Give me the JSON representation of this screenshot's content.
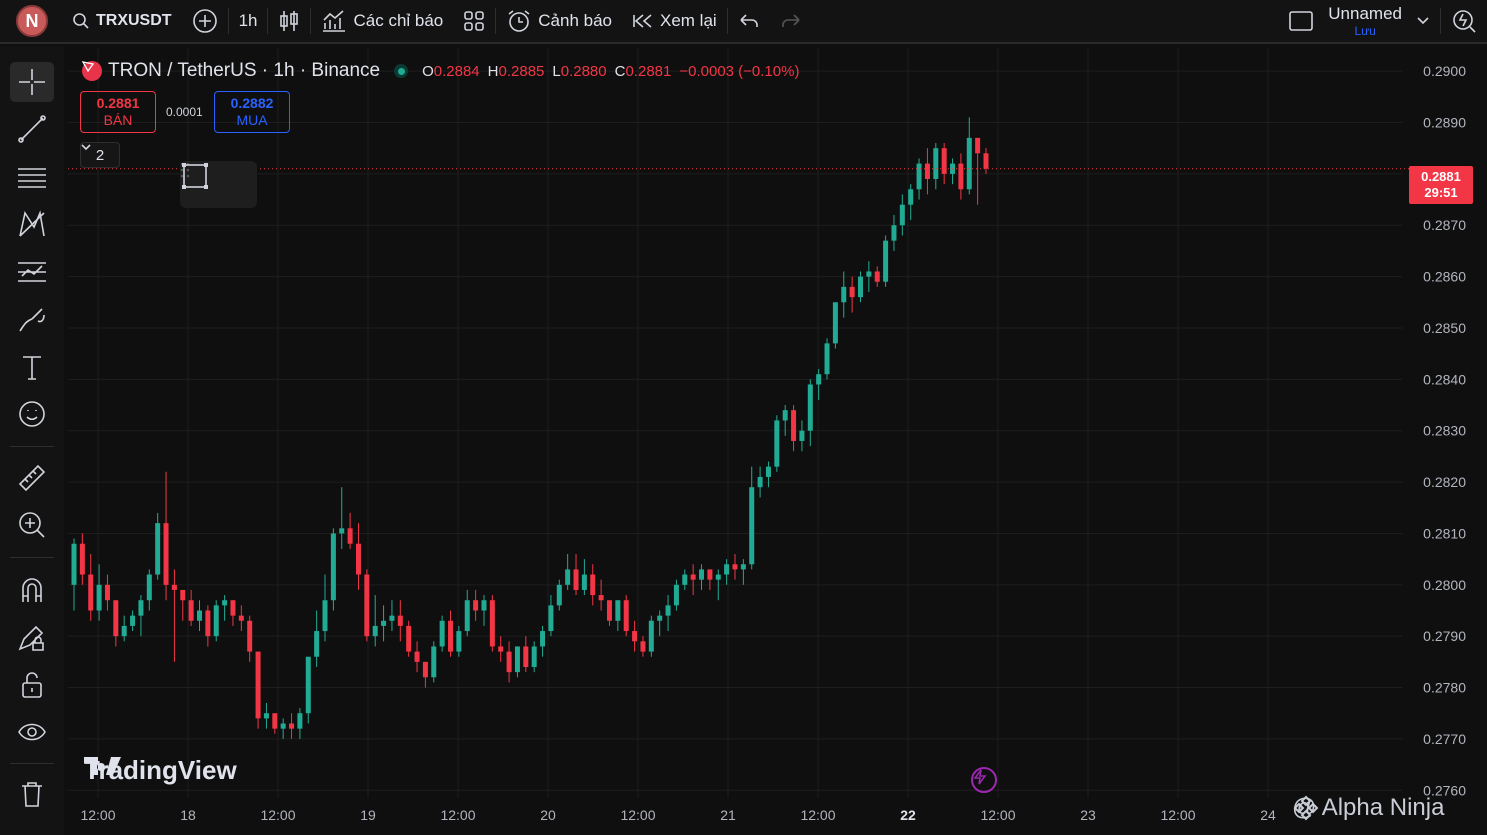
{
  "toolbar": {
    "avatar_letter": "N",
    "symbol": "TRXUSDT",
    "interval": "1h",
    "indicators_label": "Các chỉ báo",
    "alerts_label": "Cảnh báo",
    "replay_label": "Xem lại",
    "layout_name": "Unnamed",
    "layout_save": "Lưu"
  },
  "legend": {
    "title": "TRON / TetherUS · 1h · Binance",
    "o_key": "O",
    "o_val": "0.2884",
    "h_key": "H",
    "h_val": "0.2885",
    "l_key": "L",
    "l_val": "0.2880",
    "c_key": "C",
    "c_val": "0.2881",
    "change": "−0.0003 (−0.10%)"
  },
  "trade": {
    "sell_price": "0.2881",
    "sell_label": "BÁN",
    "spread": "0.0001",
    "buy_price": "0.2882",
    "buy_label": "MUA",
    "collapse_count": "2"
  },
  "price_tag": {
    "price": "0.2881",
    "countdown": "29:51"
  },
  "watermark": "TradingView",
  "credit": "@ Alpha Ninja",
  "colors": {
    "up": "#22ab94",
    "down": "#f23645",
    "grid": "#1e1e1e",
    "accent": "#2962ff"
  },
  "chart_data": {
    "type": "candlestick",
    "y_ticks": [
      "0.2900",
      "0.2890",
      "0.2880",
      "0.2870",
      "0.2860",
      "0.2850",
      "0.2840",
      "0.2830",
      "0.2820",
      "0.2810",
      "0.2800",
      "0.2790",
      "0.2780",
      "0.2770",
      "0.2760"
    ],
    "ylim": [
      0.27585,
      0.29045
    ],
    "x_ticks": [
      "12:00",
      "18",
      "12:00",
      "19",
      "12:00",
      "20",
      "12:00",
      "21",
      "12:00",
      "22",
      "12:00",
      "23",
      "12:00",
      "24"
    ],
    "bold_x_tick_index": 9,
    "current_price": 0.2881,
    "candles": [
      [
        0.28,
        0.2809,
        0.2795,
        0.2808
      ],
      [
        0.2808,
        0.281,
        0.28,
        0.2802
      ],
      [
        0.2802,
        0.2806,
        0.2793,
        0.2795
      ],
      [
        0.2795,
        0.2804,
        0.2793,
        0.28
      ],
      [
        0.28,
        0.2802,
        0.2795,
        0.2797
      ],
      [
        0.2797,
        0.2797,
        0.2788,
        0.279
      ],
      [
        0.279,
        0.2794,
        0.2789,
        0.2792
      ],
      [
        0.2792,
        0.2795,
        0.2791,
        0.2794
      ],
      [
        0.2794,
        0.2798,
        0.279,
        0.2797
      ],
      [
        0.2797,
        0.2803,
        0.2795,
        0.2802
      ],
      [
        0.2802,
        0.2814,
        0.2801,
        0.2812
      ],
      [
        0.2812,
        0.2822,
        0.2797,
        0.28
      ],
      [
        0.28,
        0.2803,
        0.2785,
        0.2799
      ],
      [
        0.2799,
        0.2799,
        0.2793,
        0.2797
      ],
      [
        0.2797,
        0.2799,
        0.2792,
        0.2793
      ],
      [
        0.2793,
        0.2797,
        0.2791,
        0.2795
      ],
      [
        0.2795,
        0.2796,
        0.2788,
        0.279
      ],
      [
        0.279,
        0.2797,
        0.2789,
        0.2796
      ],
      [
        0.2796,
        0.2798,
        0.2793,
        0.2797
      ],
      [
        0.2797,
        0.2797,
        0.2792,
        0.2794
      ],
      [
        0.2794,
        0.2796,
        0.2791,
        0.2793
      ],
      [
        0.2793,
        0.2794,
        0.2785,
        0.2787
      ],
      [
        0.2787,
        0.2787,
        0.2772,
        0.2774
      ],
      [
        0.2774,
        0.2777,
        0.2772,
        0.2775
      ],
      [
        0.2775,
        0.2775,
        0.2771,
        0.2772
      ],
      [
        0.2772,
        0.2774,
        0.277,
        0.2773
      ],
      [
        0.2773,
        0.2775,
        0.277,
        0.2772
      ],
      [
        0.2772,
        0.2776,
        0.277,
        0.2775
      ],
      [
        0.2775,
        0.2785,
        0.2773,
        0.2786
      ],
      [
        0.2786,
        0.2795,
        0.2784,
        0.2791
      ],
      [
        0.2791,
        0.2802,
        0.2789,
        0.2797
      ],
      [
        0.2797,
        0.2811,
        0.2795,
        0.281
      ],
      [
        0.281,
        0.2819,
        0.2807,
        0.2811
      ],
      [
        0.2811,
        0.2814,
        0.2807,
        0.2808
      ],
      [
        0.2808,
        0.2812,
        0.2799,
        0.2802
      ],
      [
        0.2802,
        0.2803,
        0.2789,
        0.279
      ],
      [
        0.279,
        0.2798,
        0.2788,
        0.2792
      ],
      [
        0.2792,
        0.2796,
        0.2789,
        0.2793
      ],
      [
        0.2793,
        0.2797,
        0.2791,
        0.2794
      ],
      [
        0.2794,
        0.2797,
        0.2789,
        0.2792
      ],
      [
        0.2792,
        0.2793,
        0.2786,
        0.2787
      ],
      [
        0.2787,
        0.2789,
        0.2783,
        0.2785
      ],
      [
        0.2785,
        0.2785,
        0.278,
        0.2782
      ],
      [
        0.2782,
        0.2789,
        0.2781,
        0.2788
      ],
      [
        0.2788,
        0.2794,
        0.2787,
        0.2793
      ],
      [
        0.2793,
        0.2795,
        0.2786,
        0.2787
      ],
      [
        0.2787,
        0.2792,
        0.2786,
        0.2791
      ],
      [
        0.2791,
        0.2799,
        0.279,
        0.2797
      ],
      [
        0.2797,
        0.2799,
        0.2793,
        0.2795
      ],
      [
        0.2795,
        0.2798,
        0.2792,
        0.2797
      ],
      [
        0.2797,
        0.2798,
        0.2787,
        0.2788
      ],
      [
        0.2788,
        0.279,
        0.2785,
        0.2787
      ],
      [
        0.2787,
        0.2789,
        0.2781,
        0.2783
      ],
      [
        0.2783,
        0.2788,
        0.2782,
        0.2788
      ],
      [
        0.2788,
        0.279,
        0.2783,
        0.2784
      ],
      [
        0.2784,
        0.2789,
        0.2783,
        0.2788
      ],
      [
        0.2788,
        0.2792,
        0.2786,
        0.2791
      ],
      [
        0.2791,
        0.2798,
        0.279,
        0.2796
      ],
      [
        0.2796,
        0.2801,
        0.2795,
        0.28
      ],
      [
        0.28,
        0.2806,
        0.2799,
        0.2803
      ],
      [
        0.2803,
        0.2806,
        0.2798,
        0.2799
      ],
      [
        0.2799,
        0.2805,
        0.2798,
        0.2802
      ],
      [
        0.2802,
        0.2804,
        0.2796,
        0.2798
      ],
      [
        0.2798,
        0.2801,
        0.2795,
        0.2797
      ],
      [
        0.2797,
        0.2797,
        0.2792,
        0.2793
      ],
      [
        0.2793,
        0.2797,
        0.2791,
        0.2797
      ],
      [
        0.2797,
        0.2798,
        0.279,
        0.2791
      ],
      [
        0.2791,
        0.2793,
        0.2787,
        0.2789
      ],
      [
        0.2789,
        0.279,
        0.2786,
        0.2787
      ],
      [
        0.2787,
        0.2794,
        0.2786,
        0.2793
      ],
      [
        0.2793,
        0.2795,
        0.279,
        0.2794
      ],
      [
        0.2794,
        0.2798,
        0.2791,
        0.2796
      ],
      [
        0.2796,
        0.2801,
        0.2795,
        0.28
      ],
      [
        0.28,
        0.2803,
        0.2799,
        0.2802
      ],
      [
        0.2802,
        0.2804,
        0.2798,
        0.2801
      ],
      [
        0.2801,
        0.2804,
        0.2799,
        0.2803
      ],
      [
        0.2803,
        0.2803,
        0.2799,
        0.2801
      ],
      [
        0.2801,
        0.2803,
        0.2797,
        0.2802
      ],
      [
        0.2802,
        0.2805,
        0.28,
        0.2804
      ],
      [
        0.2804,
        0.2806,
        0.2801,
        0.2803
      ],
      [
        0.2803,
        0.2805,
        0.28,
        0.2804
      ],
      [
        0.2804,
        0.2823,
        0.2803,
        0.2819
      ],
      [
        0.2819,
        0.2823,
        0.2817,
        0.2821
      ],
      [
        0.2821,
        0.2824,
        0.2819,
        0.2823
      ],
      [
        0.2823,
        0.2833,
        0.2822,
        0.2832
      ],
      [
        0.2832,
        0.2835,
        0.2829,
        0.2834
      ],
      [
        0.2834,
        0.2835,
        0.2826,
        0.2828
      ],
      [
        0.2828,
        0.2832,
        0.2826,
        0.283
      ],
      [
        0.283,
        0.284,
        0.2827,
        0.2839
      ],
      [
        0.2839,
        0.2842,
        0.2836,
        0.2841
      ],
      [
        0.2841,
        0.2848,
        0.284,
        0.2847
      ],
      [
        0.2847,
        0.2855,
        0.2846,
        0.2855
      ],
      [
        0.2855,
        0.2861,
        0.2852,
        0.2858
      ],
      [
        0.2858,
        0.286,
        0.2853,
        0.2856
      ],
      [
        0.2856,
        0.2861,
        0.2855,
        0.286
      ],
      [
        0.286,
        0.2863,
        0.2857,
        0.2861
      ],
      [
        0.2861,
        0.2862,
        0.2858,
        0.2859
      ],
      [
        0.2859,
        0.2868,
        0.2858,
        0.2867
      ],
      [
        0.2867,
        0.2872,
        0.2865,
        0.287
      ],
      [
        0.287,
        0.2876,
        0.2868,
        0.2874
      ],
      [
        0.2874,
        0.2878,
        0.2871,
        0.2877
      ],
      [
        0.2877,
        0.2883,
        0.2875,
        0.2882
      ],
      [
        0.2882,
        0.2885,
        0.2876,
        0.2879
      ],
      [
        0.2879,
        0.2886,
        0.2877,
        0.2885
      ],
      [
        0.2885,
        0.2886,
        0.2878,
        0.288
      ],
      [
        0.288,
        0.2883,
        0.2878,
        0.2882
      ],
      [
        0.2882,
        0.2884,
        0.2875,
        0.2877
      ],
      [
        0.2877,
        0.2891,
        0.2876,
        0.2887
      ],
      [
        0.2887,
        0.2887,
        0.2874,
        0.2884
      ],
      [
        0.2884,
        0.2885,
        0.288,
        0.2881
      ]
    ]
  }
}
